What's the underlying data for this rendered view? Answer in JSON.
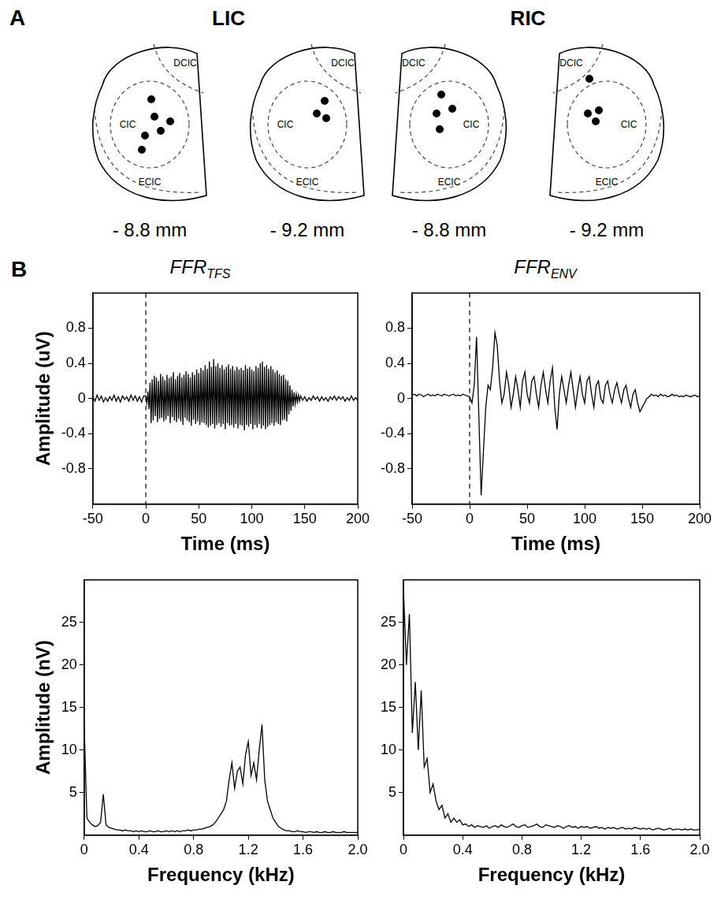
{
  "panel_a": {
    "label": "A",
    "hemispheres": [
      {
        "name": "LIC",
        "sections": [
          {
            "depth": "- 8.8 mm",
            "regions": [
              "DCIC",
              "CIC",
              "ECIC"
            ],
            "sites": 6
          },
          {
            "depth": "- 9.2 mm",
            "regions": [
              "DCIC",
              "CIC",
              "ECIC"
            ],
            "sites": 3
          }
        ]
      },
      {
        "name": "RIC",
        "sections": [
          {
            "depth": "- 8.8 mm",
            "regions": [
              "DCIC",
              "CIC",
              "ECIC"
            ],
            "sites": 4
          },
          {
            "depth": "- 9.2 mm",
            "regions": [
              "DCIC",
              "CIC",
              "ECIC"
            ],
            "sites": 4
          }
        ]
      }
    ]
  },
  "panel_b": {
    "label": "B"
  },
  "chart_data": [
    {
      "type": "line",
      "title": "FFR",
      "title_subscript": "TFS",
      "x_label": "Time (ms)",
      "y_label": "Amplitude (uV)",
      "color": "#000000",
      "grid": false,
      "stimulus_onset": 0,
      "xlim": [
        -50,
        200
      ],
      "xticks": [
        -50,
        0,
        50,
        100,
        150,
        200
      ],
      "ylim": [
        -1.2,
        1.2
      ],
      "yticks": [
        -0.8,
        -0.4,
        0,
        0.4,
        0.8
      ],
      "x": [
        -50,
        -48,
        -46,
        -44,
        -42,
        -40,
        -38,
        -36,
        -34,
        -32,
        -30,
        -28,
        -26,
        -24,
        -22,
        -20,
        -18,
        -16,
        -14,
        -12,
        -10,
        -8,
        -6,
        -4,
        -2,
        0,
        1,
        2,
        3,
        4,
        5,
        6,
        7,
        8,
        9,
        10,
        11,
        12,
        13,
        14,
        15,
        16,
        17,
        18,
        19,
        20,
        21,
        22,
        23,
        24,
        25,
        26,
        27,
        28,
        29,
        30,
        31,
        32,
        33,
        34,
        35,
        36,
        37,
        38,
        39,
        40,
        41,
        42,
        43,
        44,
        45,
        46,
        47,
        48,
        49,
        50,
        51,
        52,
        53,
        54,
        55,
        56,
        57,
        58,
        59,
        60,
        61,
        62,
        63,
        64,
        65,
        66,
        67,
        68,
        69,
        70,
        71,
        72,
        73,
        74,
        75,
        76,
        77,
        78,
        79,
        80,
        81,
        82,
        83,
        84,
        85,
        86,
        87,
        88,
        89,
        90,
        91,
        92,
        93,
        94,
        95,
        96,
        97,
        98,
        99,
        100,
        101,
        102,
        103,
        104,
        105,
        106,
        107,
        108,
        109,
        110,
        111,
        112,
        113,
        114,
        115,
        116,
        117,
        118,
        119,
        120,
        121,
        122,
        123,
        124,
        125,
        126,
        127,
        128,
        129,
        130,
        131,
        132,
        133,
        134,
        135,
        136,
        137,
        138,
        139,
        140,
        141,
        142,
        143,
        144,
        145,
        146,
        148,
        150,
        152,
        154,
        156,
        158,
        160,
        162,
        164,
        166,
        168,
        170,
        172,
        174,
        176,
        178,
        180,
        182,
        184,
        186,
        188,
        190,
        192,
        194,
        196,
        198,
        200
      ],
      "values": [
        0.02,
        -0.03,
        0.04,
        -0.02,
        0.03,
        -0.04,
        0.01,
        -0.03,
        0.02,
        -0.02,
        0.04,
        -0.03,
        0.02,
        -0.04,
        0.03,
        -0.01,
        0.02,
        -0.03,
        0.04,
        -0.02,
        0.03,
        -0.03,
        0.02,
        -0.04,
        0.03,
        0.03,
        -0.05,
        0.08,
        -0.12,
        0.18,
        -0.28,
        0.22,
        -0.25,
        0.26,
        -0.2,
        0.24,
        -0.27,
        0.2,
        -0.23,
        0.28,
        -0.22,
        0.25,
        -0.26,
        0.21,
        -0.24,
        0.27,
        -0.2,
        0.23,
        -0.28,
        0.25,
        -0.21,
        0.3,
        -0.25,
        0.22,
        -0.27,
        0.26,
        -0.23,
        0.29,
        -0.26,
        0.24,
        -0.3,
        0.27,
        -0.22,
        0.31,
        -0.25,
        0.28,
        -0.27,
        0.24,
        -0.31,
        0.3,
        -0.24,
        0.27,
        -0.29,
        0.33,
        -0.26,
        0.29,
        -0.3,
        0.35,
        -0.27,
        0.32,
        -0.28,
        0.38,
        -0.3,
        0.34,
        -0.33,
        0.42,
        -0.31,
        0.36,
        -0.29,
        0.45,
        -0.34,
        0.37,
        -0.3,
        0.4,
        -0.28,
        0.35,
        -0.32,
        0.38,
        -0.29,
        0.33,
        -0.35,
        0.36,
        -0.28,
        0.39,
        -0.31,
        0.34,
        -0.3,
        0.37,
        -0.33,
        0.32,
        -0.29,
        0.36,
        -0.34,
        0.33,
        -0.3,
        0.35,
        -0.31,
        0.32,
        -0.36,
        0.38,
        -0.3,
        0.34,
        -0.32,
        0.36,
        -0.29,
        0.33,
        -0.35,
        0.31,
        -0.3,
        0.37,
        -0.33,
        0.35,
        -0.29,
        0.4,
        -0.34,
        0.42,
        -0.31,
        0.36,
        -0.35,
        0.38,
        -0.32,
        0.34,
        -0.3,
        0.37,
        -0.28,
        0.33,
        -0.31,
        0.3,
        -0.27,
        0.32,
        -0.29,
        0.28,
        -0.3,
        0.26,
        -0.25,
        0.27,
        -0.24,
        0.22,
        -0.26,
        0.2,
        -0.18,
        0.15,
        -0.14,
        0.1,
        -0.09,
        0.07,
        -0.06,
        0.05,
        -0.04,
        0.04,
        -0.03,
        0.03,
        -0.02,
        0.02,
        -0.03,
        0.01,
        -0.02,
        0.03,
        -0.01,
        0.02,
        -0.03,
        0.02,
        -0.02,
        0.01,
        -0.03,
        0.02,
        -0.01,
        0.03,
        -0.02,
        0.02,
        -0.01,
        0.02,
        -0.03,
        0.01,
        -0.02,
        0.03,
        -0.02,
        0.01,
        -0.02
      ]
    },
    {
      "type": "line",
      "title": "FFR",
      "title_subscript": "ENV",
      "x_label": "Time (ms)",
      "color": "#000000",
      "grid": false,
      "stimulus_onset": 0,
      "xlim": [
        -50,
        200
      ],
      "xticks": [
        -50,
        0,
        50,
        100,
        150,
        200
      ],
      "ylim": [
        -1.2,
        1.2
      ],
      "yticks": [
        -0.8,
        -0.4,
        0,
        0.4,
        0.8
      ],
      "x": [
        -50,
        -48,
        -46,
        -44,
        -42,
        -40,
        -38,
        -36,
        -34,
        -32,
        -30,
        -28,
        -26,
        -24,
        -22,
        -20,
        -18,
        -16,
        -14,
        -12,
        -10,
        -8,
        -6,
        -4,
        -2,
        0,
        2,
        4,
        6,
        8,
        10,
        12,
        14,
        16,
        18,
        20,
        22,
        24,
        26,
        28,
        30,
        32,
        34,
        36,
        38,
        40,
        42,
        44,
        46,
        48,
        50,
        52,
        54,
        56,
        58,
        60,
        62,
        64,
        66,
        68,
        70,
        72,
        74,
        76,
        78,
        80,
        82,
        84,
        86,
        88,
        90,
        92,
        94,
        96,
        98,
        100,
        102,
        104,
        106,
        108,
        110,
        112,
        114,
        116,
        118,
        120,
        122,
        124,
        126,
        128,
        130,
        132,
        134,
        136,
        138,
        140,
        142,
        144,
        146,
        148,
        150,
        152,
        154,
        156,
        158,
        160,
        162,
        164,
        166,
        168,
        170,
        172,
        174,
        176,
        178,
        180,
        182,
        184,
        186,
        188,
        190,
        192,
        194,
        196,
        198,
        200
      ],
      "values": [
        0.04,
        0.05,
        0.03,
        0.05,
        0.04,
        0.02,
        0.04,
        0.05,
        0.03,
        0.04,
        0.03,
        0.05,
        0.04,
        0.03,
        0.05,
        0.04,
        0.03,
        0.04,
        0.05,
        0.03,
        0.04,
        0.03,
        0.05,
        0.04,
        0.03,
        0.02,
        -0.05,
        0.15,
        0.7,
        -0.2,
        -1.1,
        -0.6,
        -0.1,
        0.15,
        0.1,
        0.35,
        0.75,
        0.6,
        0.2,
        -0.05,
        0.05,
        0.3,
        0.15,
        -0.1,
        0.05,
        0.25,
        0.1,
        -0.1,
        0.2,
        0.3,
        0.05,
        -0.05,
        0.2,
        0.25,
        0.05,
        -0.1,
        0.15,
        0.3,
        0.1,
        -0.05,
        0.2,
        0.35,
        -0.1,
        -0.35,
        0.05,
        0.25,
        0.1,
        -0.05,
        0.15,
        0.3,
        0.1,
        -0.1,
        0.1,
        0.25,
        0.05,
        -0.05,
        0.2,
        0.25,
        0.05,
        -0.1,
        0.15,
        0.2,
        0.0,
        -0.05,
        0.15,
        0.2,
        0.05,
        -0.05,
        0.1,
        0.18,
        0.05,
        -0.05,
        0.1,
        0.15,
        0.0,
        -0.1,
        0.05,
        0.1,
        -0.05,
        -0.15,
        -0.1,
        -0.05,
        0.0,
        0.02,
        0.05,
        0.03,
        0.04,
        0.02,
        0.05,
        0.03,
        0.04,
        0.02,
        0.03,
        0.05,
        0.03,
        0.04,
        0.02,
        0.03,
        0.02,
        0.04,
        0.03,
        0.02,
        0.03,
        0.04,
        0.02,
        0.03
      ]
    },
    {
      "type": "line",
      "x_label": "Frequency (kHz)",
      "y_label": "Amplitude (nV)",
      "color": "#000000",
      "grid": false,
      "xlim": [
        0,
        2
      ],
      "xticks": [
        0,
        0.4,
        0.8,
        1.2,
        1.6,
        {
          "value": 2,
          "label": "2.0"
        }
      ],
      "ylim": [
        0,
        30
      ],
      "yticks": [
        5,
        10,
        15,
        20,
        25
      ],
      "x": [
        0,
        0.02,
        0.04,
        0.06,
        0.08,
        0.1,
        0.12,
        0.14,
        0.16,
        0.18,
        0.2,
        0.22,
        0.24,
        0.26,
        0.28,
        0.3,
        0.32,
        0.34,
        0.36,
        0.38,
        0.4,
        0.42,
        0.44,
        0.46,
        0.48,
        0.5,
        0.52,
        0.54,
        0.56,
        0.58,
        0.6,
        0.62,
        0.64,
        0.66,
        0.68,
        0.7,
        0.72,
        0.74,
        0.76,
        0.78,
        0.8,
        0.82,
        0.84,
        0.86,
        0.88,
        0.9,
        0.92,
        0.94,
        0.96,
        0.98,
        1,
        1.02,
        1.04,
        1.06,
        1.08,
        1.1,
        1.12,
        1.14,
        1.16,
        1.18,
        1.2,
        1.22,
        1.24,
        1.26,
        1.28,
        1.3,
        1.32,
        1.34,
        1.36,
        1.38,
        1.4,
        1.42,
        1.44,
        1.46,
        1.48,
        1.5,
        1.52,
        1.54,
        1.56,
        1.58,
        1.6,
        1.62,
        1.64,
        1.66,
        1.68,
        1.7,
        1.72,
        1.74,
        1.76,
        1.78,
        1.8,
        1.82,
        1.84,
        1.86,
        1.88,
        1.9,
        1.92,
        1.94,
        1.96,
        1.98,
        2
      ],
      "values": [
        13,
        2,
        1.5,
        1.2,
        1.0,
        1.1,
        1.5,
        4.8,
        1.2,
        0.9,
        0.8,
        0.7,
        0.6,
        0.6,
        0.5,
        0.6,
        0.5,
        0.5,
        0.4,
        0.5,
        0.4,
        0.5,
        0.4,
        0.4,
        0.5,
        0.4,
        0.4,
        0.5,
        0.4,
        0.4,
        0.5,
        0.4,
        0.5,
        0.4,
        0.5,
        0.4,
        0.5,
        0.5,
        0.6,
        0.5,
        0.6,
        0.6,
        0.7,
        0.7,
        0.8,
        0.9,
        1.0,
        1.2,
        1.5,
        2.0,
        2.5,
        3.0,
        4.0,
        6.5,
        8.5,
        5.5,
        7.5,
        8.0,
        6.0,
        9.5,
        11.0,
        7.0,
        8.5,
        6.5,
        10.0,
        13.0,
        6.5,
        4.0,
        3.0,
        2.0,
        1.5,
        1.0,
        0.8,
        0.6,
        0.5,
        0.5,
        0.4,
        0.4,
        0.5,
        0.4,
        0.4,
        0.3,
        0.4,
        0.4,
        0.3,
        0.4,
        0.3,
        0.3,
        0.4,
        0.3,
        0.3,
        0.4,
        0.3,
        0.3,
        0.3,
        0.4,
        0.3,
        0.3,
        0.3,
        0.3,
        0.3
      ]
    },
    {
      "type": "line",
      "x_label": "Frequency (kHz)",
      "color": "#000000",
      "grid": false,
      "xlim": [
        0,
        2
      ],
      "xticks": [
        0,
        0.4,
        0.8,
        1.2,
        1.6,
        {
          "value": 2,
          "label": "2.0"
        }
      ],
      "ylim": [
        0,
        30
      ],
      "yticks": [
        5,
        10,
        15,
        20,
        25
      ],
      "x": [
        0,
        0.02,
        0.04,
        0.06,
        0.08,
        0.1,
        0.12,
        0.14,
        0.16,
        0.18,
        0.2,
        0.22,
        0.24,
        0.26,
        0.28,
        0.3,
        0.32,
        0.34,
        0.36,
        0.38,
        0.4,
        0.42,
        0.44,
        0.46,
        0.48,
        0.5,
        0.52,
        0.54,
        0.56,
        0.58,
        0.6,
        0.62,
        0.64,
        0.66,
        0.68,
        0.7,
        0.72,
        0.74,
        0.76,
        0.78,
        0.8,
        0.82,
        0.84,
        0.86,
        0.88,
        0.9,
        0.92,
        0.94,
        0.96,
        0.98,
        1,
        1.02,
        1.04,
        1.06,
        1.08,
        1.1,
        1.12,
        1.14,
        1.16,
        1.18,
        1.2,
        1.22,
        1.24,
        1.26,
        1.28,
        1.3,
        1.32,
        1.34,
        1.36,
        1.38,
        1.4,
        1.42,
        1.44,
        1.46,
        1.48,
        1.5,
        1.52,
        1.54,
        1.56,
        1.58,
        1.6,
        1.62,
        1.64,
        1.66,
        1.68,
        1.7,
        1.72,
        1.74,
        1.76,
        1.78,
        1.8,
        1.82,
        1.84,
        1.86,
        1.88,
        1.9,
        1.92,
        1.94,
        1.96,
        1.98,
        2
      ],
      "values": [
        29,
        20,
        26,
        12,
        18,
        10,
        17,
        8,
        9,
        5,
        6,
        4,
        3,
        3.5,
        2,
        2.5,
        1.5,
        2,
        1.5,
        1.8,
        1.2,
        1.3,
        1.0,
        1.2,
        0.9,
        1.1,
        1.0,
        0.9,
        1.1,
        0.8,
        1.0,
        1.1,
        0.9,
        1.2,
        1.0,
        0.9,
        1.1,
        1.3,
        1.0,
        0.9,
        1.1,
        1.2,
        0.9,
        1.0,
        1.1,
        1.3,
        1.0,
        0.9,
        1.2,
        1.1,
        1.0,
        0.9,
        1.1,
        1.0,
        0.8,
        1.0,
        1.1,
        0.9,
        1.0,
        0.8,
        1.0,
        0.9,
        1.0,
        0.8,
        0.9,
        1.0,
        0.8,
        0.9,
        0.7,
        0.9,
        0.8,
        0.9,
        0.7,
        0.8,
        0.9,
        0.7,
        0.8,
        0.7,
        0.9,
        0.8,
        0.7,
        0.8,
        0.7,
        0.8,
        0.6,
        0.7,
        0.8,
        0.7,
        0.6,
        0.7,
        0.8,
        0.6,
        0.7,
        0.7,
        0.6,
        0.7,
        0.6,
        0.7,
        0.6,
        0.6,
        0.7
      ]
    }
  ]
}
